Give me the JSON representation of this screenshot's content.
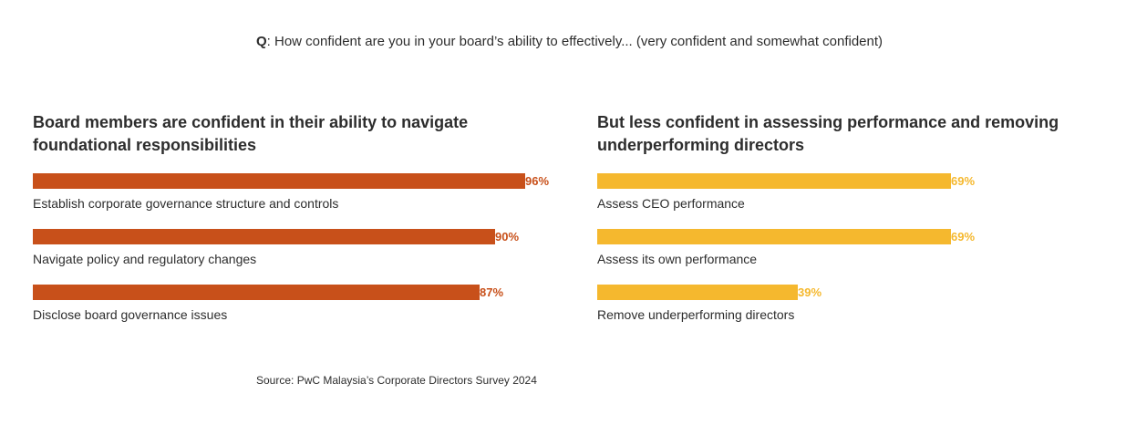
{
  "question": {
    "prefix": "Q",
    "text": ": How confident are you in your board’s ability to effectively... (very confident and somewhat confident)"
  },
  "chart_data": [
    {
      "type": "bar",
      "orientation": "horizontal",
      "title": "Board members are confident in their ability to navigate foundational responsibilities",
      "color": "#c8501a",
      "xlim": [
        0,
        100
      ],
      "unit": "%",
      "categories": [
        "Establish corporate governance structure and controls",
        "Navigate policy and regulatory changes",
        "Disclose board governance issues"
      ],
      "values": [
        96,
        90,
        87
      ],
      "value_labels": [
        "96%",
        "90%",
        "87%"
      ]
    },
    {
      "type": "bar",
      "orientation": "horizontal",
      "title": "But less confident in assessing performance and removing underperforming directors",
      "color": "#f5b82e",
      "xlim": [
        0,
        100
      ],
      "unit": "%",
      "categories": [
        "Assess CEO performance",
        "Assess its own performance",
        "Remove underperforming directors"
      ],
      "values": [
        69,
        69,
        39
      ],
      "value_labels": [
        "69%",
        "69%",
        "39%"
      ]
    }
  ],
  "source": "Source: PwC Malaysia’s Corporate Directors Survey 2024"
}
